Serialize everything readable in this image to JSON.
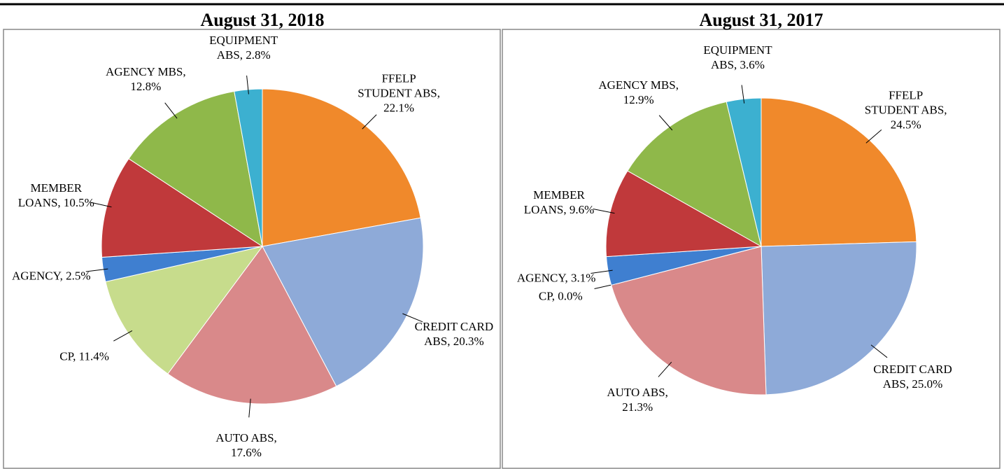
{
  "chart_data": [
    {
      "type": "pie",
      "title": "August 31, 2018",
      "values": [
        22.1,
        20.3,
        17.6,
        11.4,
        2.5,
        10.5,
        12.8,
        2.8
      ],
      "value_labels": [
        "FFELP STUDENT ABS, 22.1%",
        "CREDIT CARD ABS, 20.3%",
        "AUTO ABS, 17.6%",
        "CP, 11.4%",
        "AGENCY, 2.5%",
        "MEMBER LOANS, 10.5%",
        "AGENCY MBS, 12.8%",
        "EQUIPMENT ABS, 2.8%"
      ],
      "colors": [
        "#f0892b",
        "#8eaad8",
        "#d9898a",
        "#c7dc8c",
        "#3f7fd0",
        "#c0393b",
        "#8fb84a",
        "#3cb0d0"
      ]
    },
    {
      "type": "pie",
      "title": "August 31, 2017",
      "values": [
        24.5,
        25.0,
        21.3,
        0.0,
        3.1,
        9.6,
        12.9,
        3.6
      ],
      "value_labels": [
        "FFELP STUDENT ABS, 24.5%",
        "CREDIT CARD ABS, 25.0%",
        "AUTO ABS, 21.3%",
        "CP, 0.0%",
        "AGENCY, 3.1%",
        "MEMBER LOANS, 9.6%",
        "AGENCY MBS, 12.9%",
        "EQUIPMENT ABS, 3.6%"
      ],
      "colors": [
        "#f0892b",
        "#8eaad8",
        "#d9898a",
        "#c7dc8c",
        "#3f7fd0",
        "#c0393b",
        "#8fb84a",
        "#3cb0d0"
      ]
    }
  ]
}
